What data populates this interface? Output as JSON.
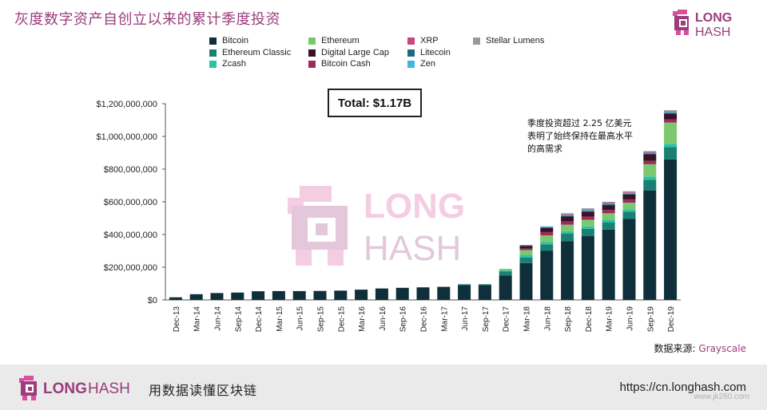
{
  "title": "灰度数字资产自创立以来的累计季度投资",
  "brand": {
    "word1": "LONG",
    "word2": "HASH",
    "accent": "#9b3c7c",
    "pink": "#d94f9c"
  },
  "legend": [
    {
      "name": "Bitcoin",
      "color": "#0f2f3a"
    },
    {
      "name": "Ethereum",
      "color": "#7cc86e"
    },
    {
      "name": "XRP",
      "color": "#c8457f"
    },
    {
      "name": "Stellar Lumens",
      "color": "#9a9a9a"
    },
    {
      "name": "Ethereum Classic",
      "color": "#1b8074"
    },
    {
      "name": "Digital Large Cap",
      "color": "#3a1224"
    },
    {
      "name": "Litecoin",
      "color": "#1e6a84"
    },
    {
      "name": "Zcash",
      "color": "#2ac4a2"
    },
    {
      "name": "Bitcoin Cash",
      "color": "#9a2c5e"
    },
    {
      "name": "Zen",
      "color": "#3fb6e0"
    }
  ],
  "total_label": "Total: $1.17B",
  "annotation": [
    "季度投资超过 2.25 亿美元",
    "表明了始终保持在最高水平",
    "的高需求"
  ],
  "source": {
    "prefix": "数据来源: ",
    "name": "Grayscale"
  },
  "footer": {
    "tagline": "用数据读懂区块链",
    "url": "https://cn.longhash.com",
    "watermark": "www.jk260.com"
  },
  "chart_data": {
    "type": "bar",
    "stacked": true,
    "ylim": [
      0,
      1200000000
    ],
    "yticks": [
      0,
      200000000,
      400000000,
      600000000,
      800000000,
      1000000000,
      1200000000
    ],
    "ytick_labels": [
      "$0",
      "$200,000,000",
      "$400,000,000",
      "$600,000,000",
      "$800,000,000",
      "$1,000,000,000",
      "$1,200,000,000"
    ],
    "categories": [
      "Dec-13",
      "Mar-14",
      "Jun-14",
      "Sep-14",
      "Dec-14",
      "Mar-15",
      "Jun-15",
      "Sep-15",
      "Dec-15",
      "Mar-16",
      "Jun-16",
      "Sep-16",
      "Dec-16",
      "Mar-17",
      "Jun-17",
      "Sep-17",
      "Dec-17",
      "Mar-18",
      "Jun-18",
      "Sep-18",
      "Dec-18",
      "Mar-19",
      "Jun-19",
      "Sep-19",
      "Dec-19"
    ],
    "series": [
      {
        "name": "Bitcoin",
        "color": "#0f2f3a",
        "values": [
          16000000,
          35000000,
          42000000,
          45000000,
          53000000,
          54000000,
          54000000,
          55000000,
          57000000,
          63000000,
          70000000,
          74000000,
          77000000,
          80000000,
          90000000,
          90000000,
          150000000,
          225000000,
          300000000,
          360000000,
          390000000,
          430000000,
          495000000,
          670000000,
          860000000
        ]
      },
      {
        "name": "Ethereum Classic",
        "color": "#1b8074",
        "values": [
          0,
          0,
          0,
          0,
          0,
          0,
          0,
          0,
          0,
          0,
          0,
          0,
          0,
          0,
          6000000,
          6000000,
          25000000,
          35000000,
          40000000,
          45000000,
          45000000,
          45000000,
          45000000,
          65000000,
          75000000
        ]
      },
      {
        "name": "Zcash",
        "color": "#2ac4a2",
        "values": [
          0,
          0,
          0,
          0,
          0,
          0,
          0,
          0,
          0,
          0,
          0,
          0,
          0,
          0,
          0,
          0,
          5000000,
          15000000,
          15000000,
          15000000,
          15000000,
          15000000,
          15000000,
          20000000,
          20000000
        ]
      },
      {
        "name": "Ethereum",
        "color": "#7cc86e",
        "values": [
          0,
          0,
          0,
          0,
          0,
          0,
          0,
          0,
          0,
          0,
          0,
          0,
          0,
          0,
          0,
          0,
          10000000,
          30000000,
          40000000,
          40000000,
          40000000,
          40000000,
          40000000,
          75000000,
          130000000
        ]
      },
      {
        "name": "Bitcoin Cash",
        "color": "#9a2c5e",
        "values": [
          0,
          0,
          0,
          0,
          0,
          0,
          0,
          0,
          0,
          0,
          0,
          0,
          0,
          0,
          0,
          0,
          0,
          10000000,
          20000000,
          20000000,
          20000000,
          20000000,
          20000000,
          20000000,
          20000000
        ]
      },
      {
        "name": "Digital Large Cap",
        "color": "#3a1224",
        "values": [
          0,
          0,
          0,
          0,
          0,
          0,
          0,
          0,
          0,
          0,
          0,
          0,
          0,
          0,
          0,
          0,
          0,
          15000000,
          25000000,
          30000000,
          30000000,
          30000000,
          30000000,
          40000000,
          35000000
        ]
      },
      {
        "name": "Litecoin",
        "color": "#1e6a84",
        "values": [
          0,
          0,
          0,
          0,
          0,
          0,
          0,
          0,
          0,
          0,
          0,
          0,
          0,
          0,
          0,
          0,
          0,
          5000000,
          5000000,
          5000000,
          5000000,
          5000000,
          5000000,
          5000000,
          5000000
        ]
      },
      {
        "name": "Zen",
        "color": "#3fb6e0",
        "values": [
          0,
          0,
          0,
          0,
          0,
          0,
          0,
          0,
          0,
          0,
          0,
          0,
          0,
          0,
          0,
          0,
          0,
          0,
          5000000,
          5000000,
          5000000,
          5000000,
          5000000,
          5000000,
          5000000
        ]
      },
      {
        "name": "XRP",
        "color": "#c8457f",
        "values": [
          0,
          0,
          0,
          0,
          0,
          0,
          0,
          0,
          0,
          0,
          0,
          0,
          0,
          0,
          0,
          0,
          0,
          0,
          0,
          5000000,
          5000000,
          5000000,
          5000000,
          5000000,
          5000000
        ]
      },
      {
        "name": "Stellar Lumens",
        "color": "#9a9a9a",
        "values": [
          0,
          0,
          0,
          0,
          0,
          0,
          0,
          0,
          0,
          0,
          0,
          0,
          0,
          0,
          0,
          0,
          0,
          0,
          0,
          5000000,
          5000000,
          5000000,
          5000000,
          5000000,
          5000000
        ]
      }
    ]
  }
}
